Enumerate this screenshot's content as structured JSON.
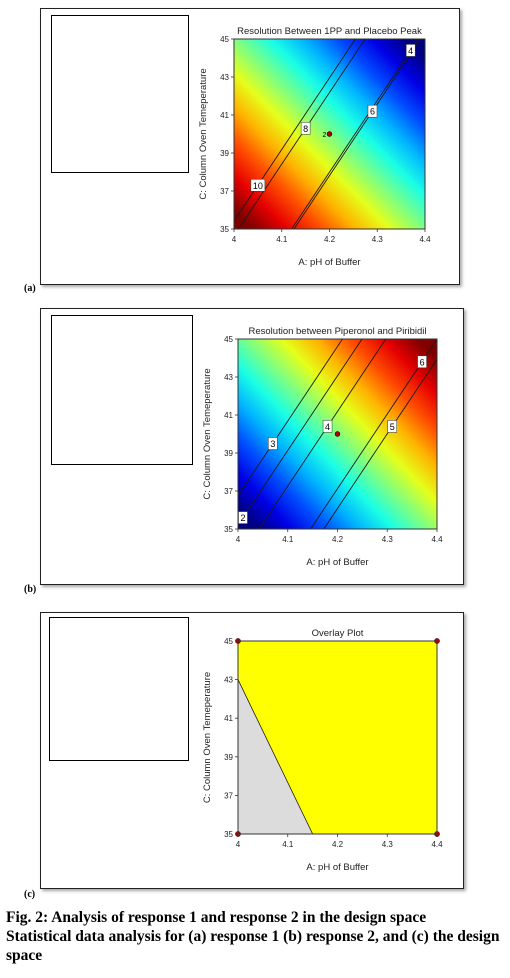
{
  "panels": [
    {
      "letter": "(a)",
      "title": "Resolution Between 1PP and Placebo Peak",
      "xlabel": "A: pH of Buffer",
      "ylabel": "C: Column Oven Temeperature"
    },
    {
      "letter": "(b)",
      "title": "Resolution between Piperonol and Piribidil",
      "xlabel": "A: pH of Buffer",
      "ylabel": "C: Column Oven Temeperature"
    },
    {
      "letter": "(c)",
      "title": "Overlay Plot",
      "xlabel": "A: pH of Buffer",
      "ylabel": "C: Column Oven Temeperature"
    }
  ],
  "caption": {
    "line1": "Fig. 2: Analysis of response 1 and response 2 in the design space",
    "line2": "Statistical data analysis for (a) response 1 (b) response 2, and (c) the design space"
  },
  "chart_data": [
    {
      "type": "contour",
      "title": "Resolution Between 1PP and Placebo Peak",
      "xlabel": "A: pH of Buffer",
      "ylabel": "C: Column Oven Temeperature",
      "xlim": [
        4,
        4.4
      ],
      "ylim": [
        35,
        45
      ],
      "xticks": [
        "4",
        "4.1",
        "4.2",
        "4.3",
        "4.4"
      ],
      "yticks": [
        "35",
        "37",
        "39",
        "41",
        "43",
        "45"
      ],
      "contour_levels": [
        4,
        6,
        8,
        10
      ],
      "contour_labels": [
        {
          "value": "4",
          "x": 4.37,
          "y": 44.4
        },
        {
          "value": "6",
          "x": 4.29,
          "y": 41.2
        },
        {
          "value": "8",
          "x": 4.15,
          "y": 40.3
        },
        {
          "value": "10",
          "x": 4.05,
          "y": 37.3
        }
      ],
      "center_point": {
        "x": 4.2,
        "y": 40,
        "label": "2"
      },
      "colormap": "red (high) to blue (low)"
    },
    {
      "type": "contour",
      "title": "Resolution between Piperonol and Piribidil",
      "xlabel": "A: pH of Buffer",
      "ylabel": "C: Column Oven Temeperature",
      "xlim": [
        4,
        4.4
      ],
      "ylim": [
        35,
        45
      ],
      "xticks": [
        "4",
        "4.1",
        "4.2",
        "4.3",
        "4.4"
      ],
      "yticks": [
        "35",
        "37",
        "39",
        "41",
        "43",
        "45"
      ],
      "contour_levels": [
        2,
        3,
        4,
        5,
        6
      ],
      "contour_labels": [
        {
          "value": "2",
          "x": 4.01,
          "y": 35.6
        },
        {
          "value": "3",
          "x": 4.07,
          "y": 39.5
        },
        {
          "value": "4",
          "x": 4.18,
          "y": 40.4
        },
        {
          "value": "5",
          "x": 4.31,
          "y": 40.4
        },
        {
          "value": "6",
          "x": 4.37,
          "y": 43.8
        }
      ],
      "center_point": {
        "x": 4.2,
        "y": 40
      },
      "colormap": "blue (low) to red (high)"
    },
    {
      "type": "overlay",
      "title": "Overlay Plot",
      "xlabel": "A: pH of Buffer",
      "ylabel": "C: Column Oven Temeperature",
      "xlim": [
        4,
        4.4
      ],
      "ylim": [
        35,
        45
      ],
      "xticks": [
        "4",
        "4.1",
        "4.2",
        "4.3",
        "4.4"
      ],
      "yticks": [
        "35",
        "37",
        "39",
        "41",
        "43",
        "45"
      ],
      "excluded_region": [
        [
          4,
          35
        ],
        [
          4,
          43
        ],
        [
          4.15,
          35
        ]
      ],
      "design_space_color": "#ffff00",
      "excluded_color": "#dcdcdc",
      "corner_points": [
        [
          4,
          35
        ],
        [
          4,
          45
        ],
        [
          4.4,
          35
        ],
        [
          4.4,
          45
        ]
      ]
    }
  ]
}
